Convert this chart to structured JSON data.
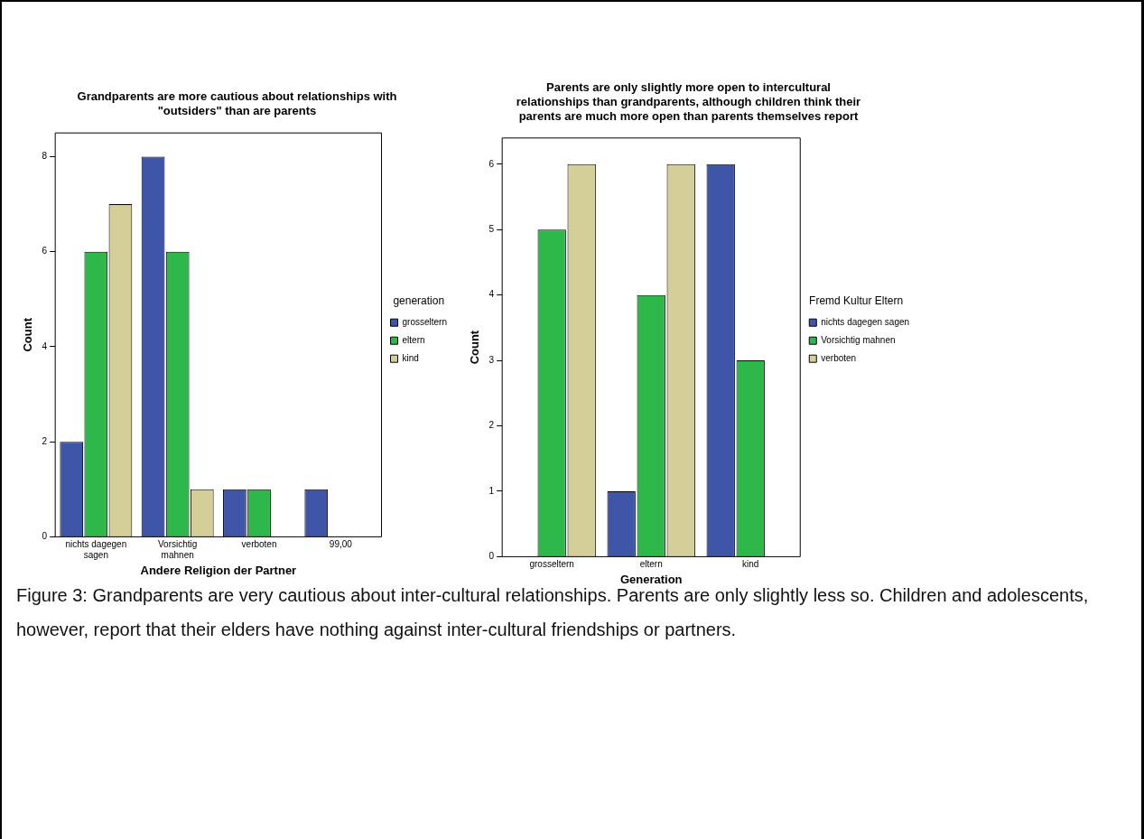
{
  "chart_data": [
    {
      "type": "bar",
      "title": "Grandparents are more cautious about relationships with \"outsiders\" than are parents",
      "xlabel": "Andere Religion der Partner",
      "ylabel": "Count",
      "legend_title": "generation",
      "categories": [
        "nichts dagegen sagen",
        "Vorsichtig mahnen",
        "verboten",
        "99,00"
      ],
      "series": [
        {
          "name": "grosseltern",
          "color": "#3f56a8",
          "values": [
            2,
            8,
            1,
            1
          ]
        },
        {
          "name": "eltern",
          "color": "#2eb84a",
          "values": [
            6,
            6,
            1,
            0
          ]
        },
        {
          "name": "kind",
          "color": "#d4cf99",
          "values": [
            7,
            1,
            0,
            0
          ]
        }
      ],
      "ylim": [
        0,
        8.5
      ],
      "yticks": [
        0,
        2,
        4,
        6,
        8
      ],
      "grid": false,
      "legend": "right",
      "annotations": [
        "Figure 3:  Grandparents are very cautious about inter-cultural relationships.  Parents are only slightly less so. Children and adolescents, however, report that their elders have nothing against inter-cultural friendships or partners."
      ]
    },
    {
      "type": "bar",
      "title": "Parents are only slightly more open to intercultural relationships than grandparents, although children think their parents are much more open than parents themselves report",
      "xlabel": "Generation",
      "ylabel": "Count",
      "legend_title": "Fremd Kultur Eltern",
      "categories": [
        "grosseltern",
        "eltern",
        "kind"
      ],
      "series": [
        {
          "name": "nichts dagegen sagen",
          "color": "#3f56a8",
          "values": [
            0,
            1,
            6
          ]
        },
        {
          "name": "Vorsichtig mahnen",
          "color": "#2eb84a",
          "values": [
            5,
            4,
            3
          ]
        },
        {
          "name": "verboten",
          "color": "#d4cf99",
          "values": [
            6,
            6,
            0
          ]
        }
      ],
      "ylim": [
        0,
        6.4
      ],
      "yticks": [
        0,
        1,
        2,
        3,
        4,
        5,
        6
      ],
      "grid": false,
      "legend": "right"
    }
  ]
}
